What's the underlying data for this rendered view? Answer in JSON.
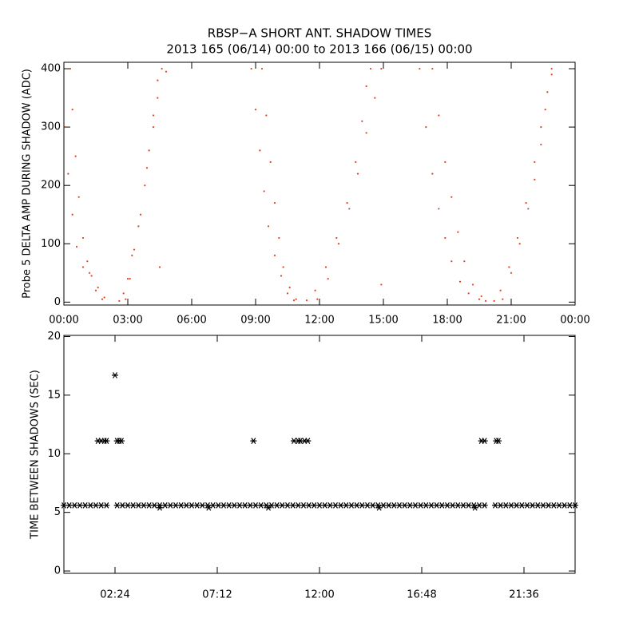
{
  "chart_data": [
    {
      "type": "scatter",
      "title": "RBSP−A SHORT ANT. SHADOW TIMES",
      "subtitle": "2013 165 (06/14) 00:00 to 2013 166 (06/15) 00:00",
      "y_label": "Probe 5 DELTA AMP DURING SHADOW (ADC)",
      "marker": "dot",
      "xlim": [
        0,
        24
      ],
      "ylim": [
        -5,
        411
      ],
      "xticks": [
        {
          "value": 0,
          "label": "00:00"
        },
        {
          "value": 3,
          "label": "03:00"
        },
        {
          "value": 6,
          "label": "06:00"
        },
        {
          "value": 9,
          "label": "09:00"
        },
        {
          "value": 12,
          "label": "12:00"
        },
        {
          "value": 15,
          "label": "15:00"
        },
        {
          "value": 18,
          "label": "18:00"
        },
        {
          "value": 21,
          "label": "21:00"
        },
        {
          "value": 24,
          "label": "00:00"
        }
      ],
      "yticks": [
        0,
        100,
        200,
        300,
        400
      ],
      "series": [
        {
          "color": "#e0401e",
          "x": [
            0.3,
            0.4,
            0.55,
            0.7,
            0.9,
            1.1,
            1.3,
            1.6,
            1.9,
            0.05,
            0.2,
            0.4,
            0.6,
            0.9,
            1.2,
            1.5,
            1.8,
            2.6,
            2.8,
            3.0,
            3.2,
            3.5,
            3.8,
            4.0,
            4.2,
            4.4,
            4.6,
            2.9,
            3.1,
            3.3,
            3.6,
            3.9,
            4.2,
            4.4,
            4.8,
            4.5,
            8.8,
            9.0,
            9.2,
            9.4,
            9.6,
            9.9,
            10.2,
            10.5,
            10.8,
            9.3,
            9.5,
            9.7,
            9.9,
            10.1,
            10.3,
            10.6,
            10.9,
            11.4,
            11.8,
            12.3,
            12.8,
            13.3,
            13.7,
            14.0,
            14.2,
            14.4,
            11.9,
            12.4,
            12.9,
            13.4,
            13.8,
            14.2,
            14.6,
            14.9,
            14.9,
            16.7,
            17.0,
            17.3,
            17.6,
            17.9,
            18.2,
            18.6,
            19.0,
            19.5,
            17.3,
            17.6,
            17.9,
            18.2,
            18.5,
            18.8,
            19.2,
            19.6,
            19.8,
            20.2,
            20.5,
            20.9,
            21.3,
            21.7,
            22.1,
            22.4,
            22.7,
            22.9,
            20.6,
            21.0,
            21.4,
            21.8,
            22.1,
            22.4,
            22.6,
            22.9
          ],
          "values": [
            400,
            330,
            250,
            180,
            110,
            70,
            45,
            25,
            8,
            300,
            220,
            150,
            95,
            60,
            50,
            20,
            5,
            2,
            15,
            40,
            80,
            130,
            200,
            260,
            320,
            380,
            400,
            5,
            40,
            90,
            150,
            230,
            300,
            350,
            395,
            60,
            400,
            330,
            260,
            190,
            130,
            80,
            45,
            15,
            3,
            400,
            320,
            240,
            170,
            110,
            60,
            25,
            5,
            3,
            20,
            60,
            110,
            170,
            240,
            310,
            370,
            400,
            5,
            40,
            100,
            160,
            220,
            290,
            350,
            400,
            30,
            400,
            300,
            220,
            160,
            110,
            70,
            35,
            15,
            5,
            400,
            320,
            240,
            180,
            120,
            70,
            30,
            10,
            2,
            2,
            20,
            60,
            110,
            170,
            240,
            300,
            360,
            400,
            5,
            50,
            100,
            160,
            210,
            270,
            330,
            390
          ]
        }
      ]
    },
    {
      "type": "scatter",
      "y_label": "TIME BETWEEN SHADOWS (SEC)",
      "marker": "asterisk",
      "xlim": [
        0,
        24
      ],
      "ylim": [
        -0.2,
        20.1
      ],
      "xticks": [
        {
          "value": 2.4,
          "label": "02:24"
        },
        {
          "value": 7.2,
          "label": "07:12"
        },
        {
          "value": 12,
          "label": "12:00"
        },
        {
          "value": 16.8,
          "label": "16:48"
        },
        {
          "value": 21.6,
          "label": "21:36"
        }
      ],
      "yticks": [
        0,
        5,
        10,
        15,
        20
      ],
      "series": [
        {
          "color": "#000000",
          "x": [
            0,
            0.25,
            0.5,
            0.75,
            1,
            1.25,
            1.5,
            1.75,
            2,
            2.5,
            2.75,
            3,
            3.25,
            3.5,
            3.75,
            4,
            4.25,
            4.5,
            4.75,
            5,
            5.25,
            5.5,
            5.75,
            6,
            6.25,
            6.5,
            6.75,
            7,
            7.25,
            7.5,
            7.75,
            8,
            8.25,
            8.5,
            8.75,
            9,
            9.25,
            9.5,
            9.75,
            10,
            10.25,
            10.5,
            10.75,
            11,
            11.25,
            11.5,
            11.75,
            12,
            12.25,
            12.5,
            12.75,
            13,
            13.25,
            13.5,
            13.75,
            14,
            14.25,
            14.5,
            14.75,
            15,
            15.25,
            15.5,
            15.75,
            16,
            16.25,
            16.5,
            16.75,
            17,
            17.25,
            17.5,
            17.75,
            18,
            18.25,
            18.5,
            18.75,
            19,
            19.25,
            19.5,
            19.75,
            20.25,
            20.5,
            20.75,
            21,
            21.25,
            21.5,
            21.75,
            22,
            22.25,
            22.5,
            22.75,
            23,
            23.25,
            23.5,
            23.75,
            24,
            1.6,
            1.75,
            1.9,
            2.0,
            2.5,
            2.6,
            2.7,
            8.9,
            10.8,
            11.0,
            11.1,
            11.3,
            11.45,
            19.6,
            19.75,
            20.3,
            20.4,
            2.4,
            4.5,
            6.8,
            9.6,
            14.8,
            19.3
          ],
          "values": [
            5.6,
            5.6,
            5.6,
            5.6,
            5.6,
            5.6,
            5.6,
            5.6,
            5.6,
            5.6,
            5.6,
            5.6,
            5.6,
            5.6,
            5.6,
            5.6,
            5.6,
            5.6,
            5.6,
            5.6,
            5.6,
            5.6,
            5.6,
            5.6,
            5.6,
            5.6,
            5.6,
            5.6,
            5.6,
            5.6,
            5.6,
            5.6,
            5.6,
            5.6,
            5.6,
            5.6,
            5.6,
            5.6,
            5.6,
            5.6,
            5.6,
            5.6,
            5.6,
            5.6,
            5.6,
            5.6,
            5.6,
            5.6,
            5.6,
            5.6,
            5.6,
            5.6,
            5.6,
            5.6,
            5.6,
            5.6,
            5.6,
            5.6,
            5.6,
            5.6,
            5.6,
            5.6,
            5.6,
            5.6,
            5.6,
            5.6,
            5.6,
            5.6,
            5.6,
            5.6,
            5.6,
            5.6,
            5.6,
            5.6,
            5.6,
            5.6,
            5.6,
            5.6,
            5.6,
            5.6,
            5.6,
            5.6,
            5.6,
            5.6,
            5.6,
            5.6,
            5.6,
            5.6,
            5.6,
            5.6,
            5.6,
            5.6,
            5.6,
            5.6,
            5.6,
            11.1,
            11.1,
            11.1,
            11.1,
            11.1,
            11.1,
            11.1,
            11.1,
            11.1,
            11.1,
            11.1,
            11.1,
            11.1,
            11.1,
            11.1,
            11.1,
            11.1,
            16.7,
            5.4,
            5.4,
            5.4,
            5.4,
            5.4
          ]
        }
      ]
    }
  ]
}
